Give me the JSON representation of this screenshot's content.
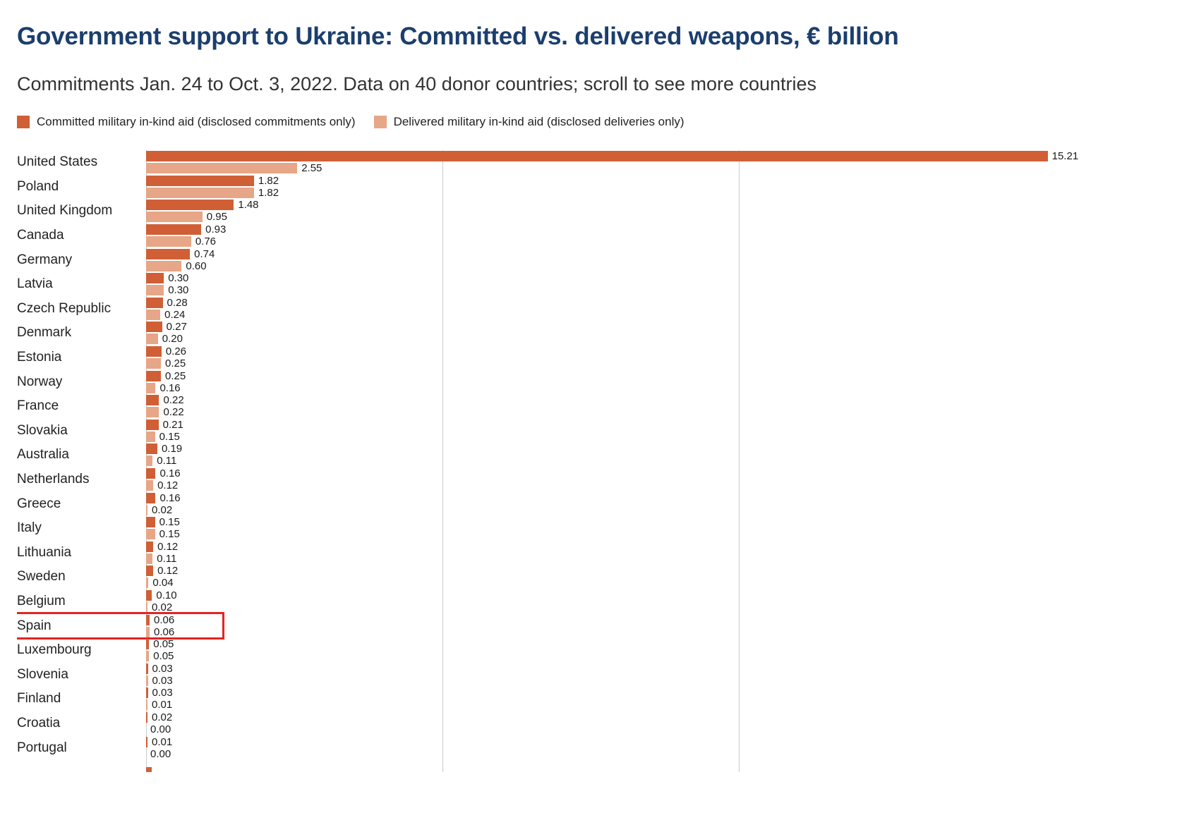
{
  "header": {
    "title": "Government support to Ukraine: Committed vs. delivered weapons, € billion",
    "subtitle": "Commitments Jan. 24 to Oct. 3, 2022. Data on 40 donor countries; scroll to see more countries"
  },
  "theme": {
    "title_color": "#1b3e6d",
    "committed_color": "#d05f36",
    "delivered_color": "#e7a687",
    "grid_color": "#cccccc",
    "highlight_color": "#e52321"
  },
  "legend": [
    {
      "label": "Committed military in-kind aid (disclosed commitments only)",
      "color": "#d05f36"
    },
    {
      "label": "Delivered military in-kind aid (disclosed deliveries only)",
      "color": "#e7a687"
    }
  ],
  "chart_data": {
    "type": "bar",
    "orientation": "horizontal",
    "title": "Government support to Ukraine: Committed vs. delivered weapons, € billion",
    "unit": "€ billion",
    "categories": [
      "United States",
      "Poland",
      "United Kingdom",
      "Canada",
      "Germany",
      "Latvia",
      "Czech Republic",
      "Denmark",
      "Estonia",
      "Norway",
      "France",
      "Slovakia",
      "Australia",
      "Netherlands",
      "Greece",
      "Italy",
      "Lithuania",
      "Sweden",
      "Belgium",
      "Spain",
      "Luxembourg",
      "Slovenia",
      "Finland",
      "Croatia",
      "Portugal"
    ],
    "series": [
      {
        "name": "Committed military in-kind aid (disclosed commitments only)",
        "values": [
          15.21,
          1.82,
          1.48,
          0.93,
          0.74,
          0.3,
          0.28,
          0.27,
          0.26,
          0.25,
          0.22,
          0.21,
          0.19,
          0.16,
          0.16,
          0.15,
          0.12,
          0.12,
          0.1,
          0.06,
          0.05,
          0.03,
          0.03,
          0.02,
          0.01
        ]
      },
      {
        "name": "Delivered military in-kind aid (disclosed deliveries only)",
        "values": [
          2.55,
          1.82,
          0.95,
          0.76,
          0.6,
          0.3,
          0.24,
          0.2,
          0.25,
          0.16,
          0.22,
          0.15,
          0.11,
          0.12,
          0.02,
          0.15,
          0.11,
          0.04,
          0.02,
          0.06,
          0.05,
          0.03,
          0.01,
          0.0,
          0.0
        ]
      }
    ],
    "value_labels": true,
    "value_format": "0.00",
    "xlim": [
      0,
      15.8
    ],
    "gridlines_at": [
      0,
      5,
      10
    ],
    "grid": true,
    "legend_position": "top",
    "highlighted_category": "Spain",
    "clipped_rows_below": true
  }
}
